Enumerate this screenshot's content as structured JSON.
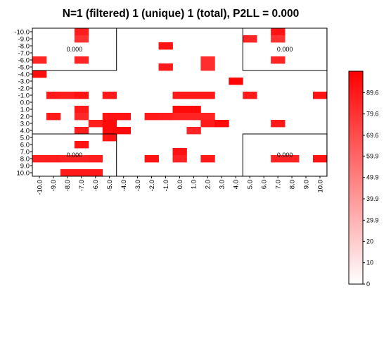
{
  "chart_data": {
    "type": "heatmap",
    "title": "N=1 (filtered) 1 (unique) 1 (total), P2LL = 0.000",
    "xlabel": "",
    "ylabel": "",
    "x_ticks": [
      "-10.0",
      "-9.0",
      "-8.0",
      "-7.0",
      "-6.0",
      "-5.0",
      "-4.0",
      "-3.0",
      "-2.0",
      "-1.0",
      "0.0",
      "1.0",
      "2.0",
      "3.0",
      "4.0",
      "5.0",
      "6.0",
      "7.0",
      "8.0",
      "9.0",
      "10.0"
    ],
    "y_ticks": [
      "-10.0",
      "-9.0",
      "-8.0",
      "-7.0",
      "-6.0",
      "-5.0",
      "-4.0",
      "-3.0",
      "-2.0",
      "-1.0",
      "0.0",
      "1.0",
      "2.0",
      "3.0",
      "4.0",
      "5.0",
      "6.0",
      "7.0",
      "8.0",
      "9.0",
      "10.0"
    ],
    "colorbar": {
      "ticks": [
        "0",
        "10",
        "20",
        "29.9",
        "39.9",
        "49.9",
        "59.9",
        "69.6",
        "79.6",
        "89.6"
      ],
      "range": [
        0,
        99.6
      ],
      "low_color": "#ffffff",
      "high_color": "#ff0000"
    },
    "zone_labels": [
      "0.000",
      "0.000",
      "0.000",
      "0.000"
    ],
    "cells": [
      {
        "x": -7,
        "y": -10,
        "v": 88
      },
      {
        "x": 7,
        "y": -10,
        "v": 92
      },
      {
        "x": -7,
        "y": -9,
        "v": 80
      },
      {
        "x": 5,
        "y": -9,
        "v": 85
      },
      {
        "x": 7,
        "y": -9,
        "v": 80
      },
      {
        "x": -1,
        "y": -8,
        "v": 92
      },
      {
        "x": -10,
        "y": -6,
        "v": 85
      },
      {
        "x": -7,
        "y": -6,
        "v": 85
      },
      {
        "x": 2,
        "y": -6,
        "v": 82
      },
      {
        "x": 7,
        "y": -6,
        "v": 85
      },
      {
        "x": -1,
        "y": -5,
        "v": 90
      },
      {
        "x": 2,
        "y": -5,
        "v": 82
      },
      {
        "x": -10,
        "y": -4,
        "v": 95
      },
      {
        "x": 4,
        "y": -3,
        "v": 98
      },
      {
        "x": -9,
        "y": -1,
        "v": 90
      },
      {
        "x": -8,
        "y": -1,
        "v": 88
      },
      {
        "x": -7,
        "y": -1,
        "v": 92
      },
      {
        "x": -5,
        "y": -1,
        "v": 90
      },
      {
        "x": 0,
        "y": -1,
        "v": 90
      },
      {
        "x": 1,
        "y": -1,
        "v": 90
      },
      {
        "x": 2,
        "y": -1,
        "v": 90
      },
      {
        "x": 5,
        "y": -1,
        "v": 90
      },
      {
        "x": 10,
        "y": -1,
        "v": 92
      },
      {
        "x": -7,
        "y": 1,
        "v": 90
      },
      {
        "x": 0,
        "y": 1,
        "v": 96
      },
      {
        "x": 1,
        "y": 1,
        "v": 96
      },
      {
        "x": -9,
        "y": 2,
        "v": 90
      },
      {
        "x": -7,
        "y": 2,
        "v": 84
      },
      {
        "x": -5,
        "y": 2,
        "v": 92
      },
      {
        "x": -4,
        "y": 2,
        "v": 92
      },
      {
        "x": -2,
        "y": 2,
        "v": 90
      },
      {
        "x": -1,
        "y": 2,
        "v": 88
      },
      {
        "x": 0,
        "y": 2,
        "v": 86
      },
      {
        "x": 1,
        "y": 2,
        "v": 86
      },
      {
        "x": 2,
        "y": 2,
        "v": 86
      },
      {
        "x": -6,
        "y": 3,
        "v": 88
      },
      {
        "x": -5,
        "y": 3,
        "v": 96
      },
      {
        "x": 2,
        "y": 3,
        "v": 90
      },
      {
        "x": 3,
        "y": 3,
        "v": 96
      },
      {
        "x": 7,
        "y": 3,
        "v": 90
      },
      {
        "x": -7,
        "y": 4,
        "v": 88
      },
      {
        "x": -5,
        "y": 4,
        "v": 96
      },
      {
        "x": -4,
        "y": 4,
        "v": 96
      },
      {
        "x": 1,
        "y": 4,
        "v": 86
      },
      {
        "x": -5,
        "y": 5,
        "v": 92
      },
      {
        "x": -7,
        "y": 6,
        "v": 92
      },
      {
        "x": 0,
        "y": 7,
        "v": 92
      },
      {
        "x": -10,
        "y": 8,
        "v": 88
      },
      {
        "x": -9,
        "y": 8,
        "v": 88
      },
      {
        "x": -8,
        "y": 8,
        "v": 86
      },
      {
        "x": -7,
        "y": 8,
        "v": 86
      },
      {
        "x": -6,
        "y": 8,
        "v": 88
      },
      {
        "x": -2,
        "y": 8,
        "v": 92
      },
      {
        "x": 0,
        "y": 8,
        "v": 86
      },
      {
        "x": 2,
        "y": 8,
        "v": 90
      },
      {
        "x": 7,
        "y": 8,
        "v": 86
      },
      {
        "x": 8,
        "y": 8,
        "v": 86
      },
      {
        "x": 10,
        "y": 8,
        "v": 92
      },
      {
        "x": -8,
        "y": 10,
        "v": 90
      },
      {
        "x": -7,
        "y": 10,
        "v": 90
      },
      {
        "x": -6,
        "y": 10,
        "v": 90
      }
    ]
  }
}
